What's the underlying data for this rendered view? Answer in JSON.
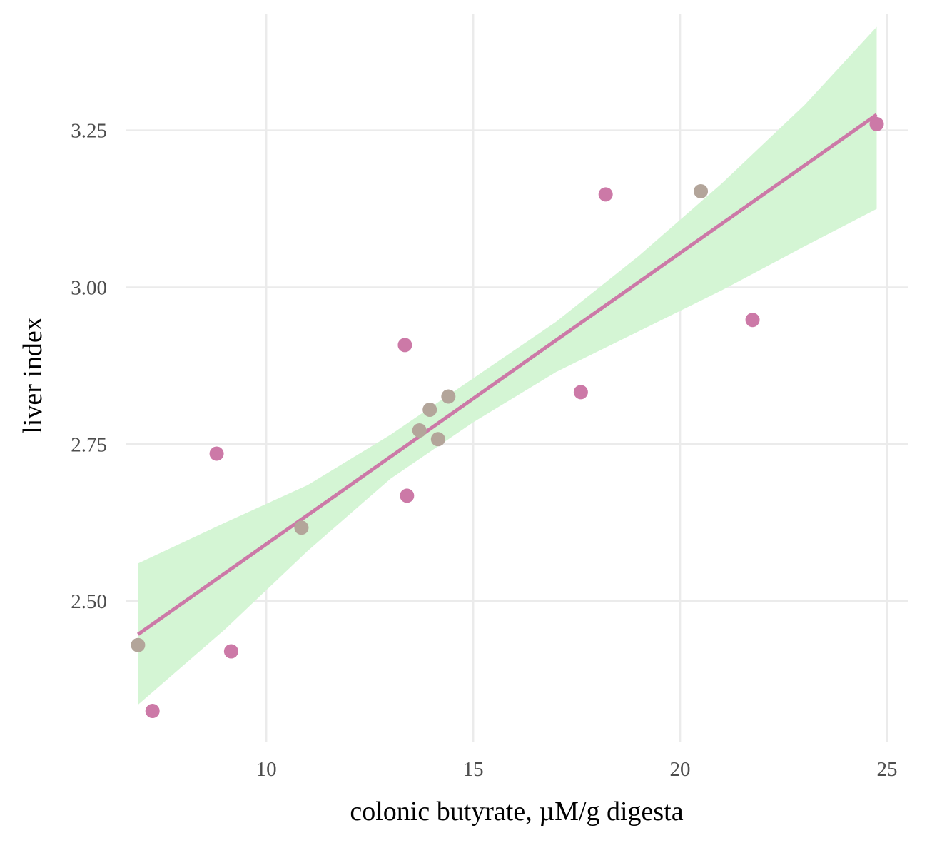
{
  "chart_data": {
    "type": "scatter",
    "title": "",
    "xlabel": "colonic butyrate, µM/g digesta",
    "ylabel": "liver index",
    "xlim": [
      6.6,
      25.5
    ],
    "ylim": [
      2.275,
      3.435
    ],
    "x_ticks": [
      {
        "value": 10,
        "label": "10"
      },
      {
        "value": 15,
        "label": "15"
      },
      {
        "value": 20,
        "label": "20"
      },
      {
        "value": 25,
        "label": "25"
      }
    ],
    "y_ticks": [
      {
        "value": 2.5,
        "label": "2.50"
      },
      {
        "value": 2.75,
        "label": "2.75"
      },
      {
        "value": 3.0,
        "label": "3.00"
      },
      {
        "value": 3.25,
        "label": "3.25"
      }
    ],
    "grid": true,
    "legend": "none",
    "series": [
      {
        "color": "#cc79a7",
        "points": [
          {
            "x": 7.25,
            "y": 2.325
          },
          {
            "x": 8.8,
            "y": 2.735
          },
          {
            "x": 9.15,
            "y": 2.42
          },
          {
            "x": 13.35,
            "y": 2.908
          },
          {
            "x": 13.4,
            "y": 2.668
          },
          {
            "x": 17.6,
            "y": 2.833
          },
          {
            "x": 18.2,
            "y": 3.148
          },
          {
            "x": 21.75,
            "y": 2.948
          },
          {
            "x": 24.75,
            "y": 3.26
          }
        ]
      },
      {
        "color": "#b3a59a",
        "points": [
          {
            "x": 6.9,
            "y": 2.43
          },
          {
            "x": 10.85,
            "y": 2.617
          },
          {
            "x": 13.7,
            "y": 2.772
          },
          {
            "x": 13.95,
            "y": 2.805
          },
          {
            "x": 14.15,
            "y": 2.758
          },
          {
            "x": 14.4,
            "y": 2.826
          },
          {
            "x": 20.5,
            "y": 3.153
          }
        ]
      }
    ],
    "fit_line": {
      "color": "#cc79a7",
      "x": [
        6.9,
        24.75
      ],
      "y": [
        2.447,
        3.275
      ]
    },
    "confidence_band": {
      "color": "#d4f5d4",
      "x": [
        6.9,
        9.0,
        11.0,
        13.0,
        15.0,
        17.0,
        19.0,
        21.0,
        23.0,
        24.75
      ],
      "upper": [
        2.56,
        2.625,
        2.685,
        2.765,
        2.855,
        2.945,
        3.05,
        3.165,
        3.29,
        3.415
      ],
      "lower": [
        2.335,
        2.455,
        2.58,
        2.695,
        2.785,
        2.865,
        2.93,
        2.995,
        3.065,
        3.125
      ]
    }
  }
}
